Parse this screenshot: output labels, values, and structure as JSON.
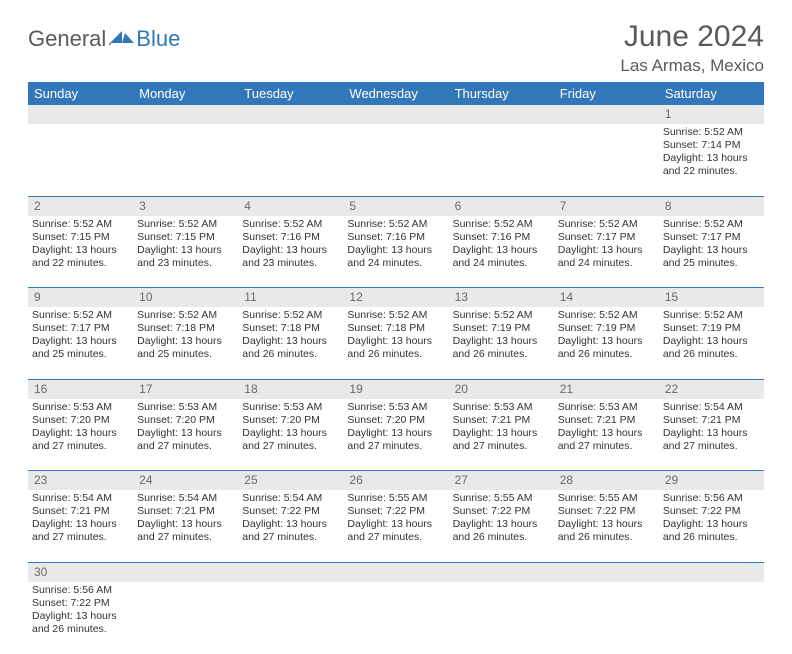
{
  "header": {
    "logo_general": "General",
    "logo_blue": "Blue",
    "month_title": "June 2024",
    "location": "Las Armas, Mexico"
  },
  "colors": {
    "header_bg": "#3277ba",
    "header_text": "#ffffff",
    "daynum_bg": "#e9e9e9",
    "border": "#3277ba",
    "text": "#333333",
    "title_text": "#5a5a5a"
  },
  "weekdays": [
    "Sunday",
    "Monday",
    "Tuesday",
    "Wednesday",
    "Thursday",
    "Friday",
    "Saturday"
  ],
  "weeks": [
    [
      null,
      null,
      null,
      null,
      null,
      null,
      {
        "n": "1",
        "sunrise": "5:52 AM",
        "sunset": "7:14 PM",
        "daylight": "13 hours and 22 minutes."
      }
    ],
    [
      {
        "n": "2",
        "sunrise": "5:52 AM",
        "sunset": "7:15 PM",
        "daylight": "13 hours and 22 minutes."
      },
      {
        "n": "3",
        "sunrise": "5:52 AM",
        "sunset": "7:15 PM",
        "daylight": "13 hours and 23 minutes."
      },
      {
        "n": "4",
        "sunrise": "5:52 AM",
        "sunset": "7:16 PM",
        "daylight": "13 hours and 23 minutes."
      },
      {
        "n": "5",
        "sunrise": "5:52 AM",
        "sunset": "7:16 PM",
        "daylight": "13 hours and 24 minutes."
      },
      {
        "n": "6",
        "sunrise": "5:52 AM",
        "sunset": "7:16 PM",
        "daylight": "13 hours and 24 minutes."
      },
      {
        "n": "7",
        "sunrise": "5:52 AM",
        "sunset": "7:17 PM",
        "daylight": "13 hours and 24 minutes."
      },
      {
        "n": "8",
        "sunrise": "5:52 AM",
        "sunset": "7:17 PM",
        "daylight": "13 hours and 25 minutes."
      }
    ],
    [
      {
        "n": "9",
        "sunrise": "5:52 AM",
        "sunset": "7:17 PM",
        "daylight": "13 hours and 25 minutes."
      },
      {
        "n": "10",
        "sunrise": "5:52 AM",
        "sunset": "7:18 PM",
        "daylight": "13 hours and 25 minutes."
      },
      {
        "n": "11",
        "sunrise": "5:52 AM",
        "sunset": "7:18 PM",
        "daylight": "13 hours and 26 minutes."
      },
      {
        "n": "12",
        "sunrise": "5:52 AM",
        "sunset": "7:18 PM",
        "daylight": "13 hours and 26 minutes."
      },
      {
        "n": "13",
        "sunrise": "5:52 AM",
        "sunset": "7:19 PM",
        "daylight": "13 hours and 26 minutes."
      },
      {
        "n": "14",
        "sunrise": "5:52 AM",
        "sunset": "7:19 PM",
        "daylight": "13 hours and 26 minutes."
      },
      {
        "n": "15",
        "sunrise": "5:52 AM",
        "sunset": "7:19 PM",
        "daylight": "13 hours and 26 minutes."
      }
    ],
    [
      {
        "n": "16",
        "sunrise": "5:53 AM",
        "sunset": "7:20 PM",
        "daylight": "13 hours and 27 minutes."
      },
      {
        "n": "17",
        "sunrise": "5:53 AM",
        "sunset": "7:20 PM",
        "daylight": "13 hours and 27 minutes."
      },
      {
        "n": "18",
        "sunrise": "5:53 AM",
        "sunset": "7:20 PM",
        "daylight": "13 hours and 27 minutes."
      },
      {
        "n": "19",
        "sunrise": "5:53 AM",
        "sunset": "7:20 PM",
        "daylight": "13 hours and 27 minutes."
      },
      {
        "n": "20",
        "sunrise": "5:53 AM",
        "sunset": "7:21 PM",
        "daylight": "13 hours and 27 minutes."
      },
      {
        "n": "21",
        "sunrise": "5:53 AM",
        "sunset": "7:21 PM",
        "daylight": "13 hours and 27 minutes."
      },
      {
        "n": "22",
        "sunrise": "5:54 AM",
        "sunset": "7:21 PM",
        "daylight": "13 hours and 27 minutes."
      }
    ],
    [
      {
        "n": "23",
        "sunrise": "5:54 AM",
        "sunset": "7:21 PM",
        "daylight": "13 hours and 27 minutes."
      },
      {
        "n": "24",
        "sunrise": "5:54 AM",
        "sunset": "7:21 PM",
        "daylight": "13 hours and 27 minutes."
      },
      {
        "n": "25",
        "sunrise": "5:54 AM",
        "sunset": "7:22 PM",
        "daylight": "13 hours and 27 minutes."
      },
      {
        "n": "26",
        "sunrise": "5:55 AM",
        "sunset": "7:22 PM",
        "daylight": "13 hours and 27 minutes."
      },
      {
        "n": "27",
        "sunrise": "5:55 AM",
        "sunset": "7:22 PM",
        "daylight": "13 hours and 26 minutes."
      },
      {
        "n": "28",
        "sunrise": "5:55 AM",
        "sunset": "7:22 PM",
        "daylight": "13 hours and 26 minutes."
      },
      {
        "n": "29",
        "sunrise": "5:56 AM",
        "sunset": "7:22 PM",
        "daylight": "13 hours and 26 minutes."
      }
    ],
    [
      {
        "n": "30",
        "sunrise": "5:56 AM",
        "sunset": "7:22 PM",
        "daylight": "13 hours and 26 minutes."
      },
      null,
      null,
      null,
      null,
      null,
      null
    ]
  ],
  "labels": {
    "sunrise": "Sunrise: ",
    "sunset": "Sunset: ",
    "daylight": "Daylight: "
  }
}
